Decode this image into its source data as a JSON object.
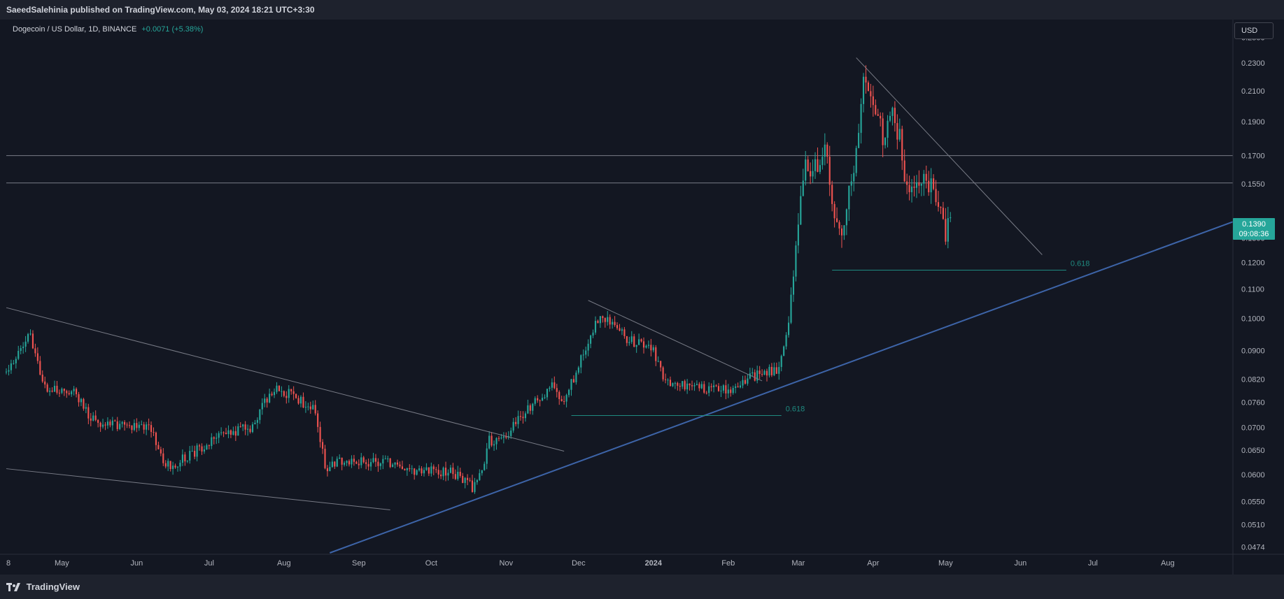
{
  "header": {
    "published": "SaeedSalehinia published on TradingView.com, May 03, 2024 18:21 UTC+3:30"
  },
  "legend": {
    "symbol": "Dogecoin / US Dollar, 1D, BINANCE",
    "change": "+0.0071 (+5.38%)"
  },
  "footer": {
    "brand": "TradingView"
  },
  "colors": {
    "up": "#26a69a",
    "down": "#ef5350",
    "background": "#131722",
    "trend": "#3d64a8",
    "fib": "#1f8a80",
    "line": "#787b86"
  },
  "chart_data": {
    "type": "candlestick",
    "currency": "USD",
    "last_price": "0.1390",
    "countdown": "09:08:36",
    "x_range": [
      "2023-04-08",
      "2024-08-28"
    ],
    "y_scale": "log",
    "ylim": [
      0.0465,
      0.265
    ],
    "x_ticks": [
      {
        "label": "8",
        "date": "2023-04-08"
      },
      {
        "label": "May",
        "date": "2023-05-01"
      },
      {
        "label": "Jun",
        "date": "2023-06-01"
      },
      {
        "label": "Jul",
        "date": "2023-07-01"
      },
      {
        "label": "Aug",
        "date": "2023-08-01"
      },
      {
        "label": "Sep",
        "date": "2023-09-01"
      },
      {
        "label": "Oct",
        "date": "2023-10-01"
      },
      {
        "label": "Nov",
        "date": "2023-11-01"
      },
      {
        "label": "Dec",
        "date": "2023-12-01"
      },
      {
        "label": "2024",
        "date": "2024-01-01",
        "bold": true
      },
      {
        "label": "Feb",
        "date": "2024-02-01"
      },
      {
        "label": "Mar",
        "date": "2024-03-01"
      },
      {
        "label": "Apr",
        "date": "2024-04-01"
      },
      {
        "label": "May",
        "date": "2024-05-01"
      },
      {
        "label": "Jun",
        "date": "2024-06-01"
      },
      {
        "label": "Jul",
        "date": "2024-07-01"
      },
      {
        "label": "Aug",
        "date": "2024-08-01"
      }
    ],
    "y_ticks": [
      "0.2500",
      "0.2300",
      "0.2100",
      "0.1900",
      "0.1700",
      "0.1550",
      "0.1300",
      "0.1200",
      "0.1100",
      "0.1000",
      "0.0900",
      "0.0820",
      "0.0760",
      "0.0700",
      "0.0650",
      "0.0600",
      "0.0550",
      "0.0510",
      "0.0474"
    ],
    "horizontal_lines": [
      0.17,
      0.1555
    ],
    "trendlines": [
      {
        "role": "upper-channel",
        "from": [
          "2023-04-08",
          0.1035
        ],
        "to": [
          "2023-11-25",
          0.0648
        ]
      },
      {
        "role": "lower-channel",
        "from": [
          "2023-04-08",
          0.0612
        ],
        "to": [
          "2023-09-14",
          0.0535
        ]
      },
      {
        "role": "dec-resistance",
        "from": [
          "2023-12-05",
          0.106
        ],
        "to": [
          "2024-02-15",
          0.0815
        ]
      },
      {
        "role": "apr-resistance",
        "from": [
          "2024-03-25",
          0.234
        ],
        "to": [
          "2024-06-10",
          0.123
        ]
      },
      {
        "role": "support",
        "from": [
          "2023-08-20",
          0.0465
        ],
        "to": [
          "2024-08-28",
          0.137
        ],
        "style": "thick"
      }
    ],
    "fib_levels": [
      {
        "label": "0.618",
        "value": 0.0728,
        "from": "2023-11-28",
        "to": "2024-02-23"
      },
      {
        "label": "0.618",
        "value": 0.117,
        "from": "2024-03-15",
        "to": "2024-06-20"
      }
    ],
    "anchors": [
      [
        "2023-04-08",
        0.084
      ],
      [
        "2023-04-14",
        0.09
      ],
      [
        "2023-04-18",
        0.095
      ],
      [
        "2023-04-23",
        0.08
      ],
      [
        "2023-05-05",
        0.079
      ],
      [
        "2023-05-15",
        0.071
      ],
      [
        "2023-06-01",
        0.0705
      ],
      [
        "2023-06-08",
        0.069
      ],
      [
        "2023-06-12",
        0.0615
      ],
      [
        "2023-06-20",
        0.063
      ],
      [
        "2023-07-05",
        0.068
      ],
      [
        "2023-07-18",
        0.07
      ],
      [
        "2023-07-28",
        0.08
      ],
      [
        "2023-08-05",
        0.0775
      ],
      [
        "2023-08-14",
        0.074
      ],
      [
        "2023-08-18",
        0.0615
      ],
      [
        "2023-08-28",
        0.063
      ],
      [
        "2023-09-12",
        0.0625
      ],
      [
        "2023-09-20",
        0.061
      ],
      [
        "2023-10-10",
        0.0605
      ],
      [
        "2023-10-18",
        0.0575
      ],
      [
        "2023-10-22",
        0.061
      ],
      [
        "2023-10-25",
        0.067
      ],
      [
        "2023-11-01",
        0.068
      ],
      [
        "2023-11-12",
        0.076
      ],
      [
        "2023-11-20",
        0.08
      ],
      [
        "2023-11-25",
        0.076
      ],
      [
        "2023-12-08",
        0.098
      ],
      [
        "2023-12-12",
        0.1
      ],
      [
        "2023-12-22",
        0.093
      ],
      [
        "2024-01-01",
        0.09
      ],
      [
        "2024-01-05",
        0.082
      ],
      [
        "2024-01-15",
        0.0805
      ],
      [
        "2024-01-24",
        0.079
      ],
      [
        "2024-02-05",
        0.08
      ],
      [
        "2024-02-12",
        0.083
      ],
      [
        "2024-02-22",
        0.085
      ],
      [
        "2024-02-26",
        0.097
      ],
      [
        "2024-02-29",
        0.125
      ],
      [
        "2024-03-04",
        0.17
      ],
      [
        "2024-03-06",
        0.16
      ],
      [
        "2024-03-12",
        0.172
      ],
      [
        "2024-03-16",
        0.143
      ],
      [
        "2024-03-19",
        0.13
      ],
      [
        "2024-03-24",
        0.165
      ],
      [
        "2024-03-28",
        0.215
      ],
      [
        "2024-04-01",
        0.205
      ],
      [
        "2024-04-05",
        0.18
      ],
      [
        "2024-04-09",
        0.195
      ],
      [
        "2024-04-12",
        0.18
      ],
      [
        "2024-04-15",
        0.15
      ],
      [
        "2024-04-20",
        0.158
      ],
      [
        "2024-04-24",
        0.155
      ],
      [
        "2024-04-28",
        0.145
      ],
      [
        "2024-05-01",
        0.13
      ],
      [
        "2024-05-03",
        0.139
      ]
    ]
  }
}
